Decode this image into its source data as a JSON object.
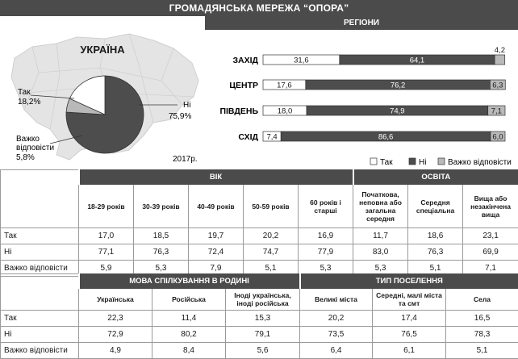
{
  "title": "ГРОМАДЯНСЬКА МЕРЕЖА “ОПОРА”",
  "pie": {
    "country": "УКРАЇНА",
    "year": "2017р.",
    "labels": {
      "yes": "Так",
      "yes_value": "18,2%",
      "no": "Ні",
      "no_value": "75,9%",
      "hard_1": "Важко",
      "hard_2": "відповісти",
      "hard_value": "5,8%"
    },
    "colors": {
      "yes": "#ffffff",
      "no": "#4d4d4d",
      "hard": "#b9b9b9",
      "map": "#e4e4e4"
    }
  },
  "regions": {
    "header": "РЕГІОНИ",
    "legend": {
      "yes": "Так",
      "no": "Ні",
      "hard": "Важко відповісти"
    }
  },
  "chart_data": [
    {
      "type": "pie",
      "title": "УКРАЇНА",
      "categories": [
        "Так",
        "Ні",
        "Важко відповісти"
      ],
      "values": [
        18.2,
        75.9,
        5.8
      ],
      "value_labels": [
        "18,2%",
        "75,9%",
        "5,8%"
      ]
    },
    {
      "type": "bar",
      "stacked": true,
      "orientation": "horizontal",
      "title": "РЕГІОНИ",
      "categories": [
        "ЗАХІД",
        "ЦЕНТР",
        "ПІВДЕНЬ",
        "СХІД"
      ],
      "series": [
        {
          "name": "Так",
          "values": [
            31.6,
            17.6,
            18.0,
            7.4
          ],
          "labels": [
            "31,6",
            "17,6",
            "18,0",
            "7,4"
          ],
          "color": "#ffffff"
        },
        {
          "name": "Ні",
          "values": [
            64.1,
            76.2,
            74.9,
            86.6
          ],
          "labels": [
            "64,1",
            "76,2",
            "74,9",
            "86,6"
          ],
          "color": "#4d4d4d"
        },
        {
          "name": "Важко відповісти",
          "values": [
            4.2,
            6.3,
            7.1,
            6.0
          ],
          "labels": [
            "4,2",
            "6,3",
            "7,1",
            "6,0"
          ],
          "color": "#b9b9b9"
        }
      ]
    }
  ],
  "table1": {
    "groups": [
      "ВІК",
      "ОСВІТА"
    ],
    "columns": [
      "18-29 років",
      "30-39 років",
      "40-49 років",
      "50-59 років",
      "60 років і старші",
      "Початкова, неповна або загальна середня",
      "Середня спеціальна",
      "Вища або незакінчена вища"
    ],
    "rows": [
      {
        "label": "Так",
        "values": [
          "17,0",
          "18,5",
          "19,7",
          "20,2",
          "16,9",
          "11,7",
          "18,6",
          "23,1"
        ]
      },
      {
        "label": "Ні",
        "values": [
          "77,1",
          "76,3",
          "72,4",
          "74,7",
          "77,9",
          "83,0",
          "76,3",
          "69,9"
        ]
      },
      {
        "label": "Важко відповісти",
        "values": [
          "5,9",
          "5,3",
          "7,9",
          "5,1",
          "5,3",
          "5,3",
          "5,1",
          "7,1"
        ]
      }
    ]
  },
  "table2": {
    "groups": [
      "МОВА СПІЛКУВАННЯ В РОДИНІ",
      "ТИП ПОСЕЛЕННЯ"
    ],
    "columns": [
      "Українська",
      "Російська",
      "Іноді українська, іноді російська",
      "Великі міста",
      "Середні, малі міста та смт",
      "Села"
    ],
    "rows": [
      {
        "label": "Так",
        "values": [
          "22,3",
          "11,4",
          "15,3",
          "20,2",
          "17,4",
          "16,5"
        ]
      },
      {
        "label": "Ні",
        "values": [
          "72,9",
          "80,2",
          "79,1",
          "73,5",
          "76,5",
          "78,3"
        ]
      },
      {
        "label": "Важко відповісти",
        "values": [
          "4,9",
          "8,4",
          "5,6",
          "6,4",
          "6,1",
          "5,1"
        ]
      }
    ]
  }
}
